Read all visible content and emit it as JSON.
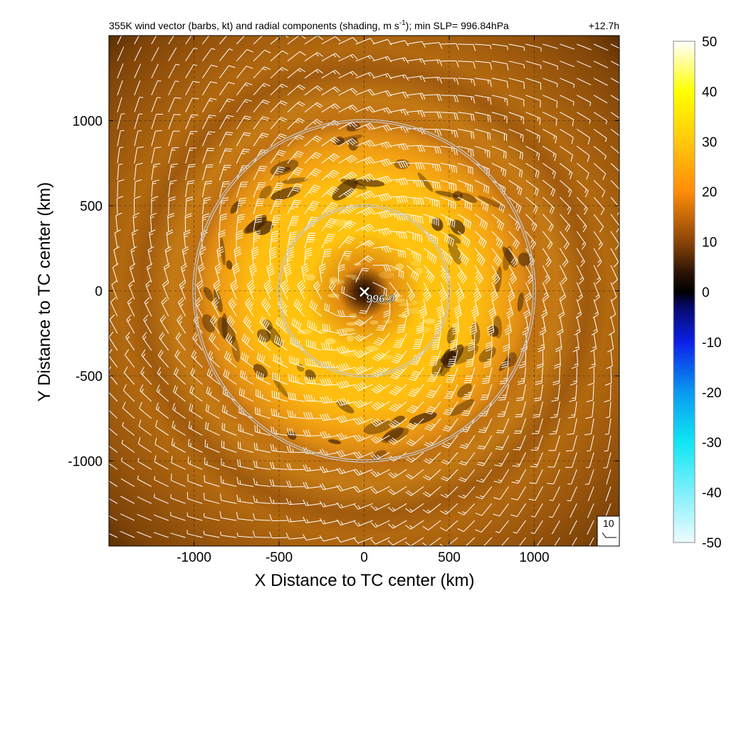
{
  "title_main": "355K wind vector (barbs, kt) and radial components (shading, m s",
  "title_sup": "-1",
  "title_end": "); min SLP= 996.84hPa",
  "time_label": "+12.7h",
  "center_slp_label": "996.9",
  "reference_vector_label": "10",
  "colors": {
    "cbar_stops": [
      {
        "v": -50,
        "c": "#eefcff"
      },
      {
        "v": -40,
        "c": "#7ff0fb"
      },
      {
        "v": -30,
        "c": "#10e6f4"
      },
      {
        "v": -20,
        "c": "#0a9af0"
      },
      {
        "v": -10,
        "c": "#0b20e8"
      },
      {
        "v": -3,
        "c": "#060a6a"
      },
      {
        "v": 0,
        "c": "#000000"
      },
      {
        "v": 4,
        "c": "#2c1505"
      },
      {
        "v": 10,
        "c": "#8a4508"
      },
      {
        "v": 20,
        "c": "#ff8c0a"
      },
      {
        "v": 30,
        "c": "#ffc80e"
      },
      {
        "v": 40,
        "c": "#ffff00"
      },
      {
        "v": 50,
        "c": "#ffffff"
      }
    ],
    "ring_stroke": "#c8c8c8",
    "barb": "#ffffff",
    "grid": "#000000"
  },
  "chart_data": {
    "type": "heatmap",
    "title": "355K wind vector (barbs, kt) and radial components (shading, m s-1); min SLP= 996.84hPa",
    "xlabel": "X Distance to TC center (km)",
    "ylabel": "Y Distance to TC center (km)",
    "xlim": [
      -1500,
      1500
    ],
    "ylim": [
      -1500,
      1500
    ],
    "x_ticks": [
      -1000,
      -500,
      0,
      500,
      1000
    ],
    "y_ticks": [
      -1000,
      -500,
      0,
      500,
      1000
    ],
    "x_tick_labels": [
      "-1000",
      "-500",
      "0",
      "500",
      "1000"
    ],
    "y_tick_labels": [
      "-1000",
      "-500",
      "0",
      "500",
      "1000"
    ],
    "grid": true,
    "grid_style": "dashed",
    "range_rings_km": [
      500,
      1000
    ],
    "center_marker": {
      "x": 0,
      "y": 0,
      "symbol": "x",
      "label": "996.9"
    },
    "colorbar": {
      "min": -50,
      "max": 50,
      "ticks": [
        50,
        40,
        30,
        20,
        10,
        0,
        -10,
        -20,
        -30,
        -40,
        -50
      ],
      "tick_labels": [
        "50",
        "40",
        "30",
        "20",
        "10",
        "0",
        "-10",
        "-20",
        "-30",
        "-40",
        "-50"
      ]
    },
    "field_description_values": {
      "inner_disk_ms": 30,
      "edge_ms": 10,
      "dark_band_ms": 4,
      "center_ms": 0
    },
    "barb_spacing_km": 100,
    "reference_barb_kt": 10,
    "min_slp_hpa": 996.84,
    "forecast_hour": "+12.7h"
  }
}
